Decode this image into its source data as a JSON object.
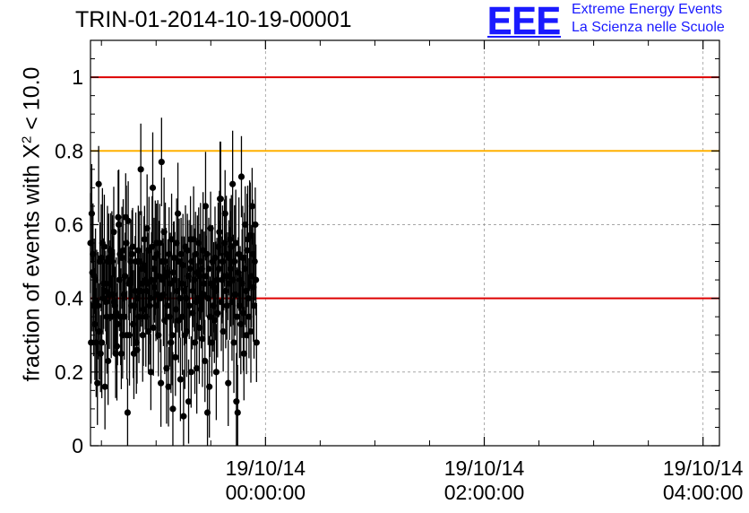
{
  "header": {
    "run_title": "TRIN-01-2014-10-19-00001",
    "logo_letters": "EEE",
    "logo_line1": "Extreme Energy Events",
    "logo_line2": "La Scienza nelle Scuole",
    "logo_color": "#1a1aff"
  },
  "chart_data": {
    "type": "scatter",
    "title": "TRIN-01-2014-10-19-00001",
    "ylabel": "fraction of events with X² < 10.0",
    "ylabel_prefix": "fraction of events with X",
    "ylabel_sup": "2",
    "ylabel_suffix": " < 10.0",
    "x_unit": "hours",
    "xlim": [
      -1.6,
      4.15
    ],
    "ylim": [
      0,
      1.1
    ],
    "y_ticks": [
      {
        "value": 0,
        "label": "0"
      },
      {
        "value": 0.2,
        "label": "0.2"
      },
      {
        "value": 0.4,
        "label": "0.4"
      },
      {
        "value": 0.6,
        "label": "0.6"
      },
      {
        "value": 0.8,
        "label": "0.8"
      },
      {
        "value": 1.0,
        "label": "1"
      }
    ],
    "x_ticks": [
      {
        "value": 0,
        "date": "19/10/14",
        "time": "00:00:00"
      },
      {
        "value": 2,
        "date": "19/10/14",
        "time": "02:00:00"
      },
      {
        "value": 4,
        "date": "19/10/14",
        "time": "04:00:00"
      }
    ],
    "x_minor_ticks": [
      -1.5,
      -1,
      -0.5,
      0.5,
      1,
      1.5,
      2.5,
      3,
      3.5
    ],
    "reference_lines": [
      {
        "y": 1.0,
        "color": "#dd0000"
      },
      {
        "y": 0.8,
        "color": "#ffb000"
      },
      {
        "y": 0.4,
        "color": "#dd0000"
      }
    ],
    "grid": true,
    "marker_color": "#000000",
    "series": [
      {
        "x_start": -1.6,
        "x_step": 0.00575,
        "values": [
          0.55,
          0.28,
          0.63,
          0.47,
          0.52,
          0.38,
          0.46,
          0.33,
          0.45,
          0.28,
          0.39,
          0.17,
          0.38,
          0.71,
          0.31,
          0.5,
          0.25,
          0.51,
          0.28,
          0.55,
          0.4,
          0.44,
          0.54,
          0.16,
          0.42,
          0.39,
          0.35,
          0.5,
          0.23,
          0.51,
          0.41,
          0.44,
          0.53,
          0.35,
          0.52,
          0.5,
          0.41,
          0.58,
          0.39,
          0.38,
          0.25,
          0.36,
          0.27,
          0.33,
          0.62,
          0.6,
          0.45,
          0.52,
          0.35,
          0.25,
          0.51,
          0.3,
          0.53,
          0.41,
          0.35,
          0.46,
          0.62,
          0.55,
          0.3,
          0.09,
          0.61,
          0.44,
          0.3,
          0.45,
          0.5,
          0.38,
          0.52,
          0.54,
          0.33,
          0.25,
          0.38,
          0.42,
          0.5,
          0.28,
          0.26,
          0.4,
          0.53,
          0.35,
          0.5,
          0.42,
          0.75,
          0.48,
          0.44,
          0.3,
          0.37,
          0.49,
          0.56,
          0.45,
          0.35,
          0.42,
          0.59,
          0.44,
          0.31,
          0.53,
          0.38,
          0.4,
          0.2,
          0.45,
          0.54,
          0.7,
          0.32,
          0.48,
          0.43,
          0.51,
          0.38,
          0.55,
          0.41,
          0.52,
          0.3,
          0.46,
          0.55,
          0.4,
          0.17,
          0.77,
          0.5,
          0.45,
          0.41,
          0.58,
          0.34,
          0.5,
          0.46,
          0.21,
          0.38,
          0.47,
          0.16,
          0.52,
          0.35,
          0.44,
          0.28,
          0.56,
          0.3,
          0.1,
          0.47,
          0.51,
          0.45,
          0.24,
          0.37,
          0.55,
          0.42,
          0.63,
          0.34,
          0.5,
          0.4,
          0.18,
          0.52,
          0.44,
          0.35,
          0.49,
          0.08,
          0.42,
          0.3,
          0.54,
          0.4,
          0.31,
          0.53,
          0.46,
          0.12,
          0.38,
          0.48,
          0.56,
          0.2,
          0.5,
          0.36,
          0.42,
          0.56,
          0.45,
          0.28,
          0.52,
          0.39,
          0.21,
          0.47,
          0.4,
          0.55,
          0.32,
          0.46,
          0.5,
          0.37,
          0.48,
          0.29,
          0.53,
          0.41,
          0.44,
          0.23,
          0.65,
          0.46,
          0.52,
          0.09,
          0.4,
          0.48,
          0.16,
          0.35,
          0.59,
          0.44,
          0.28,
          0.5,
          0.38,
          0.43,
          0.34,
          0.51,
          0.42,
          0.2,
          0.45,
          0.36,
          0.54,
          0.48,
          0.58,
          0.67,
          0.67,
          0.39,
          0.45,
          0.5,
          0.31,
          0.46,
          0.55,
          0.63,
          0.42,
          0.52,
          0.38,
          0.46,
          0.17,
          0.51,
          0.44,
          0.56,
          0.48,
          0.54,
          0.39,
          0.71,
          0.45,
          0.28,
          0.5,
          0.41,
          0.55,
          0.12,
          0.35,
          0.09,
          0.47,
          0.52,
          0.38,
          0.45,
          0.33,
          0.73,
          0.44,
          0.51,
          0.36,
          0.25,
          0.48,
          0.6,
          0.42,
          0.3,
          0.53,
          0.56,
          0.4,
          0.35,
          0.57,
          0.57,
          0.31,
          0.46,
          0.65,
          0.52,
          0.43,
          0.38,
          0.5,
          0.6,
          0.45,
          0.28
        ]
      }
    ]
  }
}
